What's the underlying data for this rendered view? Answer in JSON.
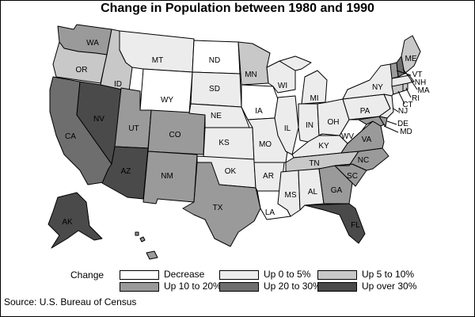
{
  "title": "Change in Population between 1980 and 1990",
  "source": "Source: U.S. Bureau of Census",
  "legend": {
    "title": "Change",
    "items": [
      {
        "key": "decrease",
        "label": "Decrease",
        "color": "#ffffff"
      },
      {
        "key": "up0",
        "label": "Up 0 to 5%",
        "color": "#ececec"
      },
      {
        "key": "up5",
        "label": "Up 5 to 10%",
        "color": "#c8c8c8"
      },
      {
        "key": "up10",
        "label": "Up 10 to 20%",
        "color": "#9a9a9a"
      },
      {
        "key": "up20",
        "label": "Up 20 to 30%",
        "color": "#6e6e6e"
      },
      {
        "key": "up30",
        "label": "Up over 30%",
        "color": "#4a4a4a"
      }
    ]
  },
  "states": [
    {
      "id": "WA",
      "label": "WA",
      "category": "up10"
    },
    {
      "id": "OR",
      "label": "OR",
      "category": "up5"
    },
    {
      "id": "CA",
      "label": "CA",
      "category": "up20"
    },
    {
      "id": "NV",
      "label": "NV",
      "category": "up30"
    },
    {
      "id": "ID",
      "label": "ID",
      "category": "up5"
    },
    {
      "id": "MT",
      "label": "MT",
      "category": "up0"
    },
    {
      "id": "WY",
      "label": "WY",
      "category": "decrease"
    },
    {
      "id": "UT",
      "label": "UT",
      "category": "up10"
    },
    {
      "id": "AZ",
      "label": "AZ",
      "category": "up30"
    },
    {
      "id": "CO",
      "label": "CO",
      "category": "up10"
    },
    {
      "id": "NM",
      "label": "NM",
      "category": "up10"
    },
    {
      "id": "ND",
      "label": "ND",
      "category": "decrease"
    },
    {
      "id": "SD",
      "label": "SD",
      "category": "up0"
    },
    {
      "id": "NE",
      "label": "NE",
      "category": "up0"
    },
    {
      "id": "KS",
      "label": "KS",
      "category": "up0"
    },
    {
      "id": "OK",
      "label": "OK",
      "category": "up0"
    },
    {
      "id": "TX",
      "label": "TX",
      "category": "up10"
    },
    {
      "id": "MN",
      "label": "MN",
      "category": "up5"
    },
    {
      "id": "IA",
      "label": "IA",
      "category": "decrease"
    },
    {
      "id": "MO",
      "label": "MO",
      "category": "up0"
    },
    {
      "id": "AR",
      "label": "AR",
      "category": "up0"
    },
    {
      "id": "LA",
      "label": "LA",
      "category": "decrease"
    },
    {
      "id": "WI",
      "label": "WI",
      "category": "up0"
    },
    {
      "id": "IL",
      "label": "IL",
      "category": "up0"
    },
    {
      "id": "MI",
      "label": "MI",
      "category": "up0"
    },
    {
      "id": "IN",
      "label": "IN",
      "category": "up0"
    },
    {
      "id": "OH",
      "label": "OH",
      "category": "up0"
    },
    {
      "id": "KY",
      "label": "KY",
      "category": "up0"
    },
    {
      "id": "TN",
      "label": "TN",
      "category": "up5"
    },
    {
      "id": "MS",
      "label": "MS",
      "category": "up0"
    },
    {
      "id": "AL",
      "label": "AL",
      "category": "up0"
    },
    {
      "id": "GA",
      "label": "GA",
      "category": "up10"
    },
    {
      "id": "FL",
      "label": "FL",
      "category": "up30"
    },
    {
      "id": "SC",
      "label": "SC",
      "category": "up10"
    },
    {
      "id": "NC",
      "label": "NC",
      "category": "up10"
    },
    {
      "id": "VA",
      "label": "VA",
      "category": "up10"
    },
    {
      "id": "WV",
      "label": "WV",
      "category": "decrease"
    },
    {
      "id": "PA",
      "label": "PA",
      "category": "up0"
    },
    {
      "id": "NY",
      "label": "NY",
      "category": "up0"
    },
    {
      "id": "NJ",
      "label": "NJ",
      "category": "up0"
    },
    {
      "id": "DE",
      "label": "DE",
      "category": "up10"
    },
    {
      "id": "MD",
      "label": "MD",
      "category": "up10"
    },
    {
      "id": "CT",
      "label": "CT",
      "category": "up5"
    },
    {
      "id": "RI",
      "label": "RI",
      "category": "up5"
    },
    {
      "id": "MA",
      "label": "MA",
      "category": "up0"
    },
    {
      "id": "VT",
      "label": "VT",
      "category": "up10"
    },
    {
      "id": "NH",
      "label": "NH",
      "category": "up20"
    },
    {
      "id": "ME",
      "label": "ME",
      "category": "up5"
    },
    {
      "id": "AK",
      "label": "AK",
      "category": "up30"
    },
    {
      "id": "HI",
      "label": "HI",
      "category": "up10"
    }
  ]
}
